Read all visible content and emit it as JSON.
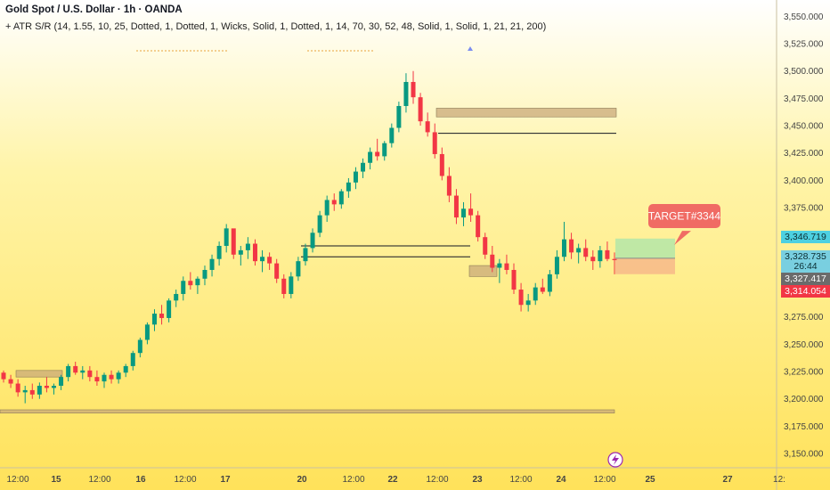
{
  "header": {
    "title": "Gold Spot / U.S. Dollar · 1h · OANDA",
    "indicator": "+ ATR S/R (14, 1.55, 10, 25, Dotted, 1, Dotted, 1, Wicks, Solid, 1, Dotted, 1, 14, 70, 30, 52, 48, Solid, 1, Solid, 1, 21, 21, 200)"
  },
  "chart_data": {
    "type": "candlestick",
    "title": "Gold Spot / U.S. Dollar · 1h · OANDA",
    "symbol": "Gold Spot / U.S. Dollar",
    "interval": "1h",
    "exchange": "OANDA",
    "y_ticks": [
      3150,
      3175,
      3200,
      3225,
      3250,
      3275,
      3300,
      3325,
      3350,
      3375,
      3400,
      3425,
      3450,
      3475,
      3500,
      3525,
      3550
    ],
    "ylim": [
      3137,
      3565
    ],
    "x_ticks": [
      {
        "label": "12:00",
        "bold": false
      },
      {
        "label": "15",
        "bold": true
      },
      {
        "label": "12:00",
        "bold": false
      },
      {
        "label": "16",
        "bold": true
      },
      {
        "label": "12:00",
        "bold": false
      },
      {
        "label": "17",
        "bold": true
      },
      {
        "label": "20",
        "bold": true
      },
      {
        "label": "12:00",
        "bold": false
      },
      {
        "label": "22",
        "bold": true
      },
      {
        "label": "12:00",
        "bold": false
      },
      {
        "label": "23",
        "bold": true
      },
      {
        "label": "12:00",
        "bold": false
      },
      {
        "label": "24",
        "bold": true
      },
      {
        "label": "12:00",
        "bold": false
      },
      {
        "label": "25",
        "bold": true
      },
      {
        "label": "27",
        "bold": true
      },
      {
        "label": "12:",
        "bold": false
      }
    ],
    "price_tags": [
      {
        "label": "3,346.719",
        "value": 3346.7,
        "bg": "#4dd0e1",
        "color": "#0b2e33"
      },
      {
        "label": "3,328.735",
        "value": 3328.7,
        "bg": "#79cfe0",
        "color": "#0b2e33"
      },
      {
        "label": "26:44",
        "value": 3316.5,
        "bg": "#79cfe0",
        "color": "#0b2e33"
      },
      {
        "label": "3,327.417",
        "value": 3327.4,
        "bg": "#6b6b6b",
        "color": "#ffffff"
      },
      {
        "label": "3,314.054",
        "value": 3314.1,
        "bg": "#f23645",
        "color": "#ffffff"
      }
    ],
    "series": [
      {
        "name": "XAUUSD",
        "up_color": "#089981",
        "down_color": "#f23645",
        "ohlc": [
          [
            3224,
            3226,
            3215,
            3218
          ],
          [
            3218,
            3222,
            3210,
            3214
          ],
          [
            3214,
            3218,
            3202,
            3206
          ],
          [
            3206,
            3212,
            3196,
            3208
          ],
          [
            3208,
            3214,
            3200,
            3204
          ],
          [
            3204,
            3215,
            3200,
            3212
          ],
          [
            3212,
            3220,
            3206,
            3210
          ],
          [
            3210,
            3214,
            3204,
            3212
          ],
          [
            3212,
            3222,
            3208,
            3220
          ],
          [
            3220,
            3232,
            3216,
            3230
          ],
          [
            3230,
            3234,
            3222,
            3224
          ],
          [
            3224,
            3230,
            3218,
            3226
          ],
          [
            3226,
            3230,
            3216,
            3220
          ],
          [
            3220,
            3226,
            3212,
            3216
          ],
          [
            3216,
            3224,
            3210,
            3222
          ],
          [
            3222,
            3226,
            3214,
            3218
          ],
          [
            3218,
            3226,
            3214,
            3224
          ],
          [
            3224,
            3232,
            3220,
            3230
          ],
          [
            3230,
            3244,
            3226,
            3242
          ],
          [
            3242,
            3256,
            3238,
            3254
          ],
          [
            3254,
            3270,
            3250,
            3268
          ],
          [
            3268,
            3282,
            3262,
            3278
          ],
          [
            3278,
            3286,
            3268,
            3274
          ],
          [
            3274,
            3292,
            3270,
            3290
          ],
          [
            3290,
            3300,
            3284,
            3296
          ],
          [
            3296,
            3312,
            3290,
            3308
          ],
          [
            3308,
            3316,
            3300,
            3304
          ],
          [
            3304,
            3312,
            3296,
            3310
          ],
          [
            3310,
            3322,
            3304,
            3318
          ],
          [
            3318,
            3332,
            3312,
            3328
          ],
          [
            3328,
            3344,
            3322,
            3340
          ],
          [
            3340,
            3360,
            3334,
            3356
          ],
          [
            3356,
            3352,
            3328,
            3332
          ],
          [
            3332,
            3340,
            3322,
            3336
          ],
          [
            3336,
            3348,
            3328,
            3342
          ],
          [
            3342,
            3346,
            3322,
            3326
          ],
          [
            3326,
            3336,
            3316,
            3330
          ],
          [
            3330,
            3334,
            3318,
            3324
          ],
          [
            3324,
            3328,
            3306,
            3310
          ],
          [
            3310,
            3314,
            3292,
            3296
          ],
          [
            3296,
            3316,
            3292,
            3312
          ],
          [
            3312,
            3330,
            3308,
            3326
          ],
          [
            3326,
            3342,
            3322,
            3338
          ],
          [
            3338,
            3356,
            3334,
            3352
          ],
          [
            3352,
            3372,
            3348,
            3368
          ],
          [
            3368,
            3386,
            3362,
            3382
          ],
          [
            3382,
            3388,
            3372,
            3378
          ],
          [
            3378,
            3392,
            3374,
            3390
          ],
          [
            3390,
            3402,
            3384,
            3398
          ],
          [
            3398,
            3412,
            3392,
            3408
          ],
          [
            3408,
            3420,
            3402,
            3416
          ],
          [
            3416,
            3430,
            3410,
            3426
          ],
          [
            3426,
            3438,
            3418,
            3422
          ],
          [
            3422,
            3436,
            3418,
            3434
          ],
          [
            3434,
            3452,
            3430,
            3448
          ],
          [
            3448,
            3472,
            3444,
            3468
          ],
          [
            3468,
            3498,
            3462,
            3490
          ],
          [
            3490,
            3500,
            3470,
            3476
          ],
          [
            3476,
            3480,
            3450,
            3454
          ],
          [
            3454,
            3462,
            3440,
            3444
          ],
          [
            3444,
            3452,
            3420,
            3424
          ],
          [
            3424,
            3430,
            3400,
            3404
          ],
          [
            3404,
            3412,
            3380,
            3386
          ],
          [
            3386,
            3392,
            3360,
            3366
          ],
          [
            3366,
            3380,
            3358,
            3374
          ],
          [
            3374,
            3388,
            3362,
            3368
          ],
          [
            3368,
            3372,
            3344,
            3348
          ],
          [
            3348,
            3352,
            3328,
            3332
          ],
          [
            3332,
            3340,
            3316,
            3320
          ],
          [
            3320,
            3328,
            3306,
            3324
          ],
          [
            3324,
            3332,
            3314,
            3318
          ],
          [
            3318,
            3324,
            3296,
            3300
          ],
          [
            3300,
            3306,
            3280,
            3286
          ],
          [
            3286,
            3296,
            3280,
            3290
          ],
          [
            3290,
            3306,
            3286,
            3302
          ],
          [
            3302,
            3310,
            3296,
            3298
          ],
          [
            3298,
            3318,
            3294,
            3314
          ],
          [
            3314,
            3336,
            3310,
            3330
          ],
          [
            3330,
            3362,
            3326,
            3346
          ],
          [
            3346,
            3352,
            3328,
            3334
          ],
          [
            3334,
            3342,
            3324,
            3338
          ],
          [
            3338,
            3346,
            3326,
            3330
          ],
          [
            3330,
            3336,
            3318,
            3326
          ],
          [
            3326,
            3340,
            3320,
            3336
          ],
          [
            3336,
            3344,
            3326,
            3328
          ],
          [
            3328,
            3334,
            3314,
            3327
          ]
        ]
      }
    ],
    "zones": [
      {
        "name": "resistance-zone-high",
        "y1": 3458,
        "y2": 3466,
        "color": "#c9a97a"
      },
      {
        "name": "support-zone-low",
        "y1": 3187,
        "y2": 3190,
        "color": "#c9a97a"
      },
      {
        "name": "left-zone",
        "y1": 3220,
        "y2": 3226,
        "color": "#c9a97a"
      },
      {
        "name": "mid-zone",
        "y1": 3312,
        "y2": 3322,
        "color": "#c9a97a"
      }
    ],
    "hlines": [
      {
        "name": "line-3443",
        "y": 3443,
        "color": "#131722"
      },
      {
        "name": "line-3340",
        "y": 3340,
        "color": "#131722"
      },
      {
        "name": "line-3330",
        "y": 3330,
        "color": "#131722"
      }
    ],
    "target": {
      "label": "TARGET#3344",
      "value": 3344,
      "color": "#f06b64"
    },
    "position": {
      "profit_color": "#b4e6a8",
      "loss_color": "#f7b98a",
      "top": 3346.7,
      "entry": 3328.7,
      "bottom": 3314.1
    }
  }
}
